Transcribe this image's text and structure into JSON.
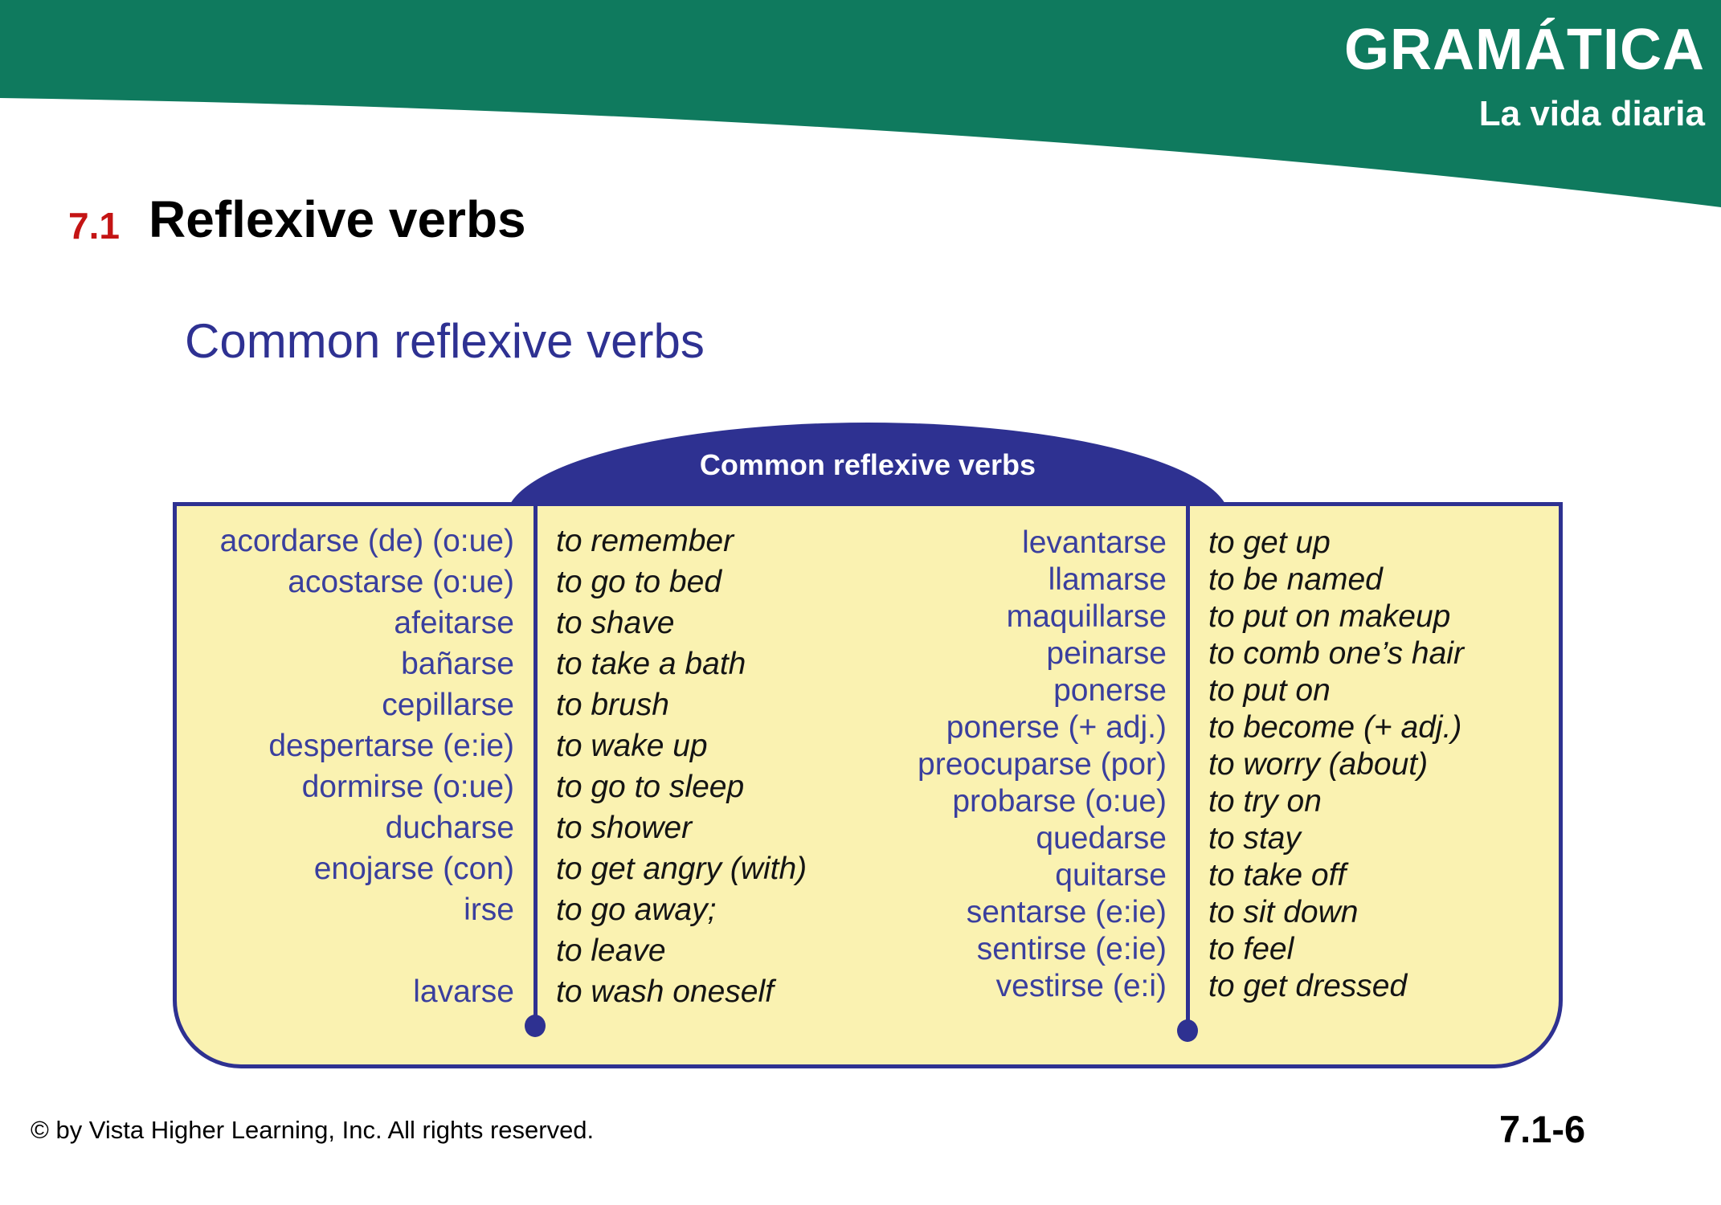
{
  "banner": {
    "title": "GRAMÁTICA",
    "subtitle": "La vida diaria",
    "bg_color": "#0f7a5e"
  },
  "lesson": {
    "number": "7.1",
    "title": "Reflexive verbs"
  },
  "section_heading": "Common reflexive verbs",
  "table": {
    "header": "Common reflexive verbs",
    "left_rows": [
      {
        "es": "acordarse (de) (o:ue)",
        "en": "to remember"
      },
      {
        "es": "acostarse (o:ue)",
        "en": "to go to bed"
      },
      {
        "es": "afeitarse",
        "en": "to shave"
      },
      {
        "es": "bañarse",
        "en": "to take a bath"
      },
      {
        "es": "cepillarse",
        "en": "to brush"
      },
      {
        "es": "despertarse (e:ie)",
        "en": "to wake up"
      },
      {
        "es": "dormirse (o:ue)",
        "en": "to go to sleep"
      },
      {
        "es": "ducharse",
        "en": "to shower"
      },
      {
        "es": "enojarse (con)",
        "en": "to get angry (with)"
      },
      {
        "es": "irse",
        "en": "to go away;"
      },
      {
        "es": "",
        "en": "to leave"
      },
      {
        "es": "lavarse",
        "en": "to wash oneself"
      }
    ],
    "right_rows": [
      {
        "es": "levantarse",
        "en": "to get up"
      },
      {
        "es": "llamarse",
        "en": "to be named"
      },
      {
        "es": "maquillarse",
        "en": "to put on makeup"
      },
      {
        "es": "peinarse",
        "en": "to comb one’s hair"
      },
      {
        "es": "ponerse",
        "en": "to put on"
      },
      {
        "es": "ponerse (+ adj.)",
        "en": "to become (+ adj.)"
      },
      {
        "es": "preocuparse (por)",
        "en": "to worry (about)"
      },
      {
        "es": "probarse (o:ue)",
        "en": "to try on"
      },
      {
        "es": "quedarse",
        "en": "to stay"
      },
      {
        "es": "quitarse",
        "en": "to take off"
      },
      {
        "es": "sentarse (e:ie)",
        "en": "to sit down"
      },
      {
        "es": "sentirse (e:ie)",
        "en": "to feel"
      },
      {
        "es": "vestirse (e:i)",
        "en": "to get dressed"
      }
    ]
  },
  "footer": {
    "copyright": "© by Vista Higher Learning, Inc. All rights reserved.",
    "page": "7.1-6"
  },
  "colors": {
    "banner_green": "#0f7a5e",
    "indigo": "#2e3191",
    "verb_text": "#3a3f9e",
    "panel_yellow": "#faf2b1",
    "lesson_red": "#c41414"
  }
}
